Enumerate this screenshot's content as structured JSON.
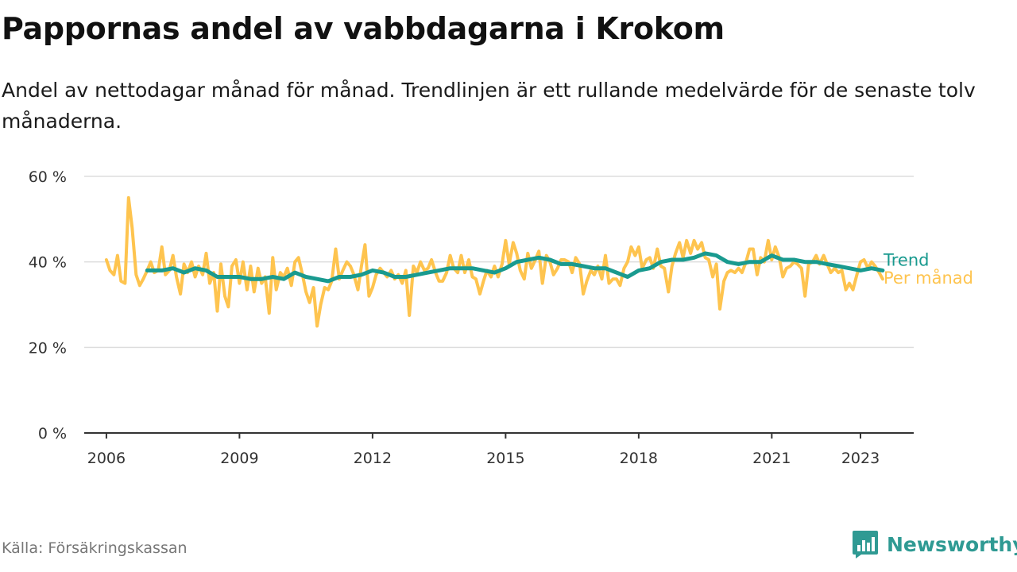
{
  "header": {
    "title": "Pappornas andel av vabbdagarna i Krokom",
    "subtitle": "Andel av nettodagar månad för månad. Trendlinjen är ett rullande medelvärde för de senaste tolv månaderna."
  },
  "footer": {
    "source": "Källa: Försäkringskassan",
    "brand": "Newsworthy",
    "brand_color": "#2f9a93"
  },
  "chart_data": {
    "type": "line",
    "title": "Pappornas andel av vabbdagarna i Krokom",
    "xlabel": "",
    "ylabel": "",
    "x_unit": "year (decimal)",
    "xlim": [
      2005.5,
      2024.2
    ],
    "ylim": [
      0,
      60
    ],
    "grid": true,
    "x_ticks": [
      {
        "value": 2006,
        "label": "2006"
      },
      {
        "value": 2009,
        "label": "2009"
      },
      {
        "value": 2012,
        "label": "2012"
      },
      {
        "value": 2015,
        "label": "2015"
      },
      {
        "value": 2018,
        "label": "2018"
      },
      {
        "value": 2021,
        "label": "2021"
      },
      {
        "value": 2023,
        "label": "2023"
      }
    ],
    "y_ticks": [
      {
        "value": 0,
        "label": "0 %"
      },
      {
        "value": 20,
        "label": "20 %"
      },
      {
        "value": 40,
        "label": "40 %"
      },
      {
        "value": 60,
        "label": "60 %"
      }
    ],
    "series": [
      {
        "name": "Per månad",
        "color": "#fec44f",
        "values": [
          [
            2006.0,
            40.5
          ],
          [
            2006.08,
            38
          ],
          [
            2006.17,
            37
          ],
          [
            2006.25,
            41.5
          ],
          [
            2006.33,
            35.5
          ],
          [
            2006.42,
            35
          ],
          [
            2006.5,
            55
          ],
          [
            2006.58,
            48
          ],
          [
            2006.67,
            37
          ],
          [
            2006.75,
            34.5
          ],
          [
            2006.83,
            36
          ],
          [
            2006.92,
            38
          ],
          [
            2007.0,
            40
          ],
          [
            2007.08,
            37.5
          ],
          [
            2007.17,
            38
          ],
          [
            2007.25,
            43.5
          ],
          [
            2007.33,
            37
          ],
          [
            2007.42,
            38
          ],
          [
            2007.5,
            41.5
          ],
          [
            2007.58,
            36.5
          ],
          [
            2007.67,
            32.5
          ],
          [
            2007.75,
            39.5
          ],
          [
            2007.83,
            37.5
          ],
          [
            2007.92,
            40
          ],
          [
            2008.0,
            36.5
          ],
          [
            2008.08,
            39
          ],
          [
            2008.17,
            37
          ],
          [
            2008.25,
            42
          ],
          [
            2008.33,
            35
          ],
          [
            2008.42,
            37.5
          ],
          [
            2008.5,
            28.5
          ],
          [
            2008.58,
            39.5
          ],
          [
            2008.67,
            32
          ],
          [
            2008.75,
            29.5
          ],
          [
            2008.83,
            39
          ],
          [
            2008.92,
            40.5
          ],
          [
            2009.0,
            35
          ],
          [
            2009.08,
            40
          ],
          [
            2009.17,
            33.5
          ],
          [
            2009.25,
            39
          ],
          [
            2009.33,
            33
          ],
          [
            2009.42,
            38.5
          ],
          [
            2009.5,
            35
          ],
          [
            2009.58,
            36.5
          ],
          [
            2009.67,
            28
          ],
          [
            2009.75,
            41
          ],
          [
            2009.83,
            33.5
          ],
          [
            2009.92,
            37.5
          ],
          [
            2010.0,
            36.5
          ],
          [
            2010.08,
            38.5
          ],
          [
            2010.17,
            34.5
          ],
          [
            2010.25,
            40
          ],
          [
            2010.33,
            41
          ],
          [
            2010.42,
            37
          ],
          [
            2010.5,
            33
          ],
          [
            2010.58,
            30.5
          ],
          [
            2010.67,
            34
          ],
          [
            2010.75,
            25
          ],
          [
            2010.83,
            30
          ],
          [
            2010.92,
            34
          ],
          [
            2011.0,
            33.5
          ],
          [
            2011.08,
            35.5
          ],
          [
            2011.17,
            43
          ],
          [
            2011.25,
            36
          ],
          [
            2011.33,
            38
          ],
          [
            2011.42,
            40
          ],
          [
            2011.5,
            39
          ],
          [
            2011.58,
            37
          ],
          [
            2011.67,
            33.5
          ],
          [
            2011.75,
            39
          ],
          [
            2011.83,
            44
          ],
          [
            2011.92,
            32
          ],
          [
            2012.0,
            34
          ],
          [
            2012.08,
            37
          ],
          [
            2012.17,
            38.5
          ],
          [
            2012.25,
            37.5
          ],
          [
            2012.33,
            36.5
          ],
          [
            2012.42,
            38
          ],
          [
            2012.5,
            36
          ],
          [
            2012.58,
            37
          ],
          [
            2012.67,
            35
          ],
          [
            2012.75,
            38
          ],
          [
            2012.83,
            27.5
          ],
          [
            2012.92,
            39
          ],
          [
            2013.0,
            37.5
          ],
          [
            2013.08,
            40
          ],
          [
            2013.17,
            38
          ],
          [
            2013.25,
            38.5
          ],
          [
            2013.33,
            40.5
          ],
          [
            2013.42,
            37.5
          ],
          [
            2013.5,
            35.5
          ],
          [
            2013.58,
            35.5
          ],
          [
            2013.67,
            37.5
          ],
          [
            2013.75,
            41.5
          ],
          [
            2013.83,
            38.5
          ],
          [
            2013.92,
            37.5
          ],
          [
            2014.0,
            41.5
          ],
          [
            2014.08,
            37.5
          ],
          [
            2014.17,
            40.5
          ],
          [
            2014.25,
            36.5
          ],
          [
            2014.33,
            36
          ],
          [
            2014.42,
            32.5
          ],
          [
            2014.5,
            35.5
          ],
          [
            2014.58,
            38
          ],
          [
            2014.67,
            36.5
          ],
          [
            2014.75,
            39
          ],
          [
            2014.83,
            36.5
          ],
          [
            2014.92,
            39.5
          ],
          [
            2015.0,
            45
          ],
          [
            2015.08,
            39.5
          ],
          [
            2015.17,
            44.5
          ],
          [
            2015.25,
            42
          ],
          [
            2015.33,
            38
          ],
          [
            2015.42,
            36
          ],
          [
            2015.5,
            42
          ],
          [
            2015.58,
            38.5
          ],
          [
            2015.67,
            40.5
          ],
          [
            2015.75,
            42.5
          ],
          [
            2015.83,
            35
          ],
          [
            2015.92,
            41.5
          ],
          [
            2016.0,
            40
          ],
          [
            2016.08,
            37
          ],
          [
            2016.17,
            38.5
          ],
          [
            2016.25,
            40.5
          ],
          [
            2016.33,
            40.5
          ],
          [
            2016.42,
            40
          ],
          [
            2016.5,
            37.5
          ],
          [
            2016.58,
            41
          ],
          [
            2016.67,
            39.5
          ],
          [
            2016.75,
            32.5
          ],
          [
            2016.83,
            35.5
          ],
          [
            2016.92,
            38
          ],
          [
            2017.0,
            37
          ],
          [
            2017.08,
            39
          ],
          [
            2017.17,
            36
          ],
          [
            2017.25,
            41.5
          ],
          [
            2017.33,
            35
          ],
          [
            2017.42,
            36
          ],
          [
            2017.5,
            36
          ],
          [
            2017.58,
            34.5
          ],
          [
            2017.67,
            38.5
          ],
          [
            2017.75,
            40
          ],
          [
            2017.83,
            43.5
          ],
          [
            2017.92,
            41.5
          ],
          [
            2018.0,
            43.5
          ],
          [
            2018.08,
            38.5
          ],
          [
            2018.17,
            40.5
          ],
          [
            2018.25,
            41
          ],
          [
            2018.33,
            38.5
          ],
          [
            2018.42,
            43
          ],
          [
            2018.5,
            39
          ],
          [
            2018.58,
            38.5
          ],
          [
            2018.67,
            33
          ],
          [
            2018.75,
            39
          ],
          [
            2018.83,
            42
          ],
          [
            2018.92,
            44.5
          ],
          [
            2019.0,
            41
          ],
          [
            2019.08,
            45
          ],
          [
            2019.17,
            42
          ],
          [
            2019.25,
            45
          ],
          [
            2019.33,
            43
          ],
          [
            2019.42,
            44.5
          ],
          [
            2019.5,
            41
          ],
          [
            2019.58,
            40.5
          ],
          [
            2019.67,
            36.5
          ],
          [
            2019.75,
            39.5
          ],
          [
            2019.83,
            29
          ],
          [
            2019.92,
            35.5
          ],
          [
            2020.0,
            37.5
          ],
          [
            2020.08,
            38
          ],
          [
            2020.17,
            37.5
          ],
          [
            2020.25,
            38.5
          ],
          [
            2020.33,
            37.5
          ],
          [
            2020.42,
            40
          ],
          [
            2020.5,
            43
          ],
          [
            2020.58,
            43
          ],
          [
            2020.67,
            37
          ],
          [
            2020.75,
            41
          ],
          [
            2020.83,
            40
          ],
          [
            2020.92,
            45
          ],
          [
            2021.0,
            40.5
          ],
          [
            2021.08,
            43.5
          ],
          [
            2021.17,
            41
          ],
          [
            2021.25,
            36.5
          ],
          [
            2021.33,
            38.5
          ],
          [
            2021.42,
            39
          ],
          [
            2021.5,
            40
          ],
          [
            2021.58,
            39.5
          ],
          [
            2021.67,
            38.5
          ],
          [
            2021.75,
            32
          ],
          [
            2021.83,
            39.5
          ],
          [
            2021.92,
            40
          ],
          [
            2022.0,
            41.5
          ],
          [
            2022.08,
            39.5
          ],
          [
            2022.17,
            41.5
          ],
          [
            2022.25,
            39.5
          ],
          [
            2022.33,
            37.5
          ],
          [
            2022.42,
            38.5
          ],
          [
            2022.5,
            37.5
          ],
          [
            2022.58,
            38
          ],
          [
            2022.67,
            33.5
          ],
          [
            2022.75,
            35
          ],
          [
            2022.83,
            33.5
          ],
          [
            2022.92,
            37
          ],
          [
            2023.0,
            40
          ],
          [
            2023.08,
            40.5
          ],
          [
            2023.17,
            38.5
          ],
          [
            2023.25,
            40
          ],
          [
            2023.33,
            39
          ],
          [
            2023.42,
            37.5
          ],
          [
            2023.5,
            36
          ]
        ]
      },
      {
        "name": "Trend",
        "color": "#199a8f",
        "values": [
          [
            2006.92,
            38
          ],
          [
            2007.0,
            38
          ],
          [
            2007.25,
            38
          ],
          [
            2007.5,
            38.5
          ],
          [
            2007.75,
            37.5
          ],
          [
            2008.0,
            38.5
          ],
          [
            2008.25,
            38
          ],
          [
            2008.5,
            36.5
          ],
          [
            2008.75,
            36.5
          ],
          [
            2009.0,
            36.5
          ],
          [
            2009.25,
            36
          ],
          [
            2009.5,
            36
          ],
          [
            2009.75,
            36.5
          ],
          [
            2010.0,
            36
          ],
          [
            2010.25,
            37.5
          ],
          [
            2010.5,
            36.5
          ],
          [
            2010.75,
            36
          ],
          [
            2011.0,
            35.5
          ],
          [
            2011.25,
            36.5
          ],
          [
            2011.5,
            36.5
          ],
          [
            2011.75,
            37
          ],
          [
            2012.0,
            38
          ],
          [
            2012.25,
            37.5
          ],
          [
            2012.5,
            36.5
          ],
          [
            2012.75,
            36.5
          ],
          [
            2013.0,
            37
          ],
          [
            2013.25,
            37.5
          ],
          [
            2013.5,
            38
          ],
          [
            2013.75,
            38.5
          ],
          [
            2014.0,
            38.5
          ],
          [
            2014.25,
            38.5
          ],
          [
            2014.5,
            38
          ],
          [
            2014.75,
            37.5
          ],
          [
            2015.0,
            38.5
          ],
          [
            2015.25,
            40
          ],
          [
            2015.5,
            40.5
          ],
          [
            2015.75,
            41
          ],
          [
            2016.0,
            40.5
          ],
          [
            2016.25,
            39.5
          ],
          [
            2016.5,
            39.5
          ],
          [
            2016.75,
            39
          ],
          [
            2017.0,
            38.5
          ],
          [
            2017.25,
            38.5
          ],
          [
            2017.5,
            37.5
          ],
          [
            2017.75,
            36.5
          ],
          [
            2018.0,
            38
          ],
          [
            2018.25,
            38.5
          ],
          [
            2018.5,
            40
          ],
          [
            2018.75,
            40.5
          ],
          [
            2019.0,
            40.5
          ],
          [
            2019.25,
            41
          ],
          [
            2019.5,
            42
          ],
          [
            2019.75,
            41.5
          ],
          [
            2020.0,
            40
          ],
          [
            2020.25,
            39.5
          ],
          [
            2020.5,
            40
          ],
          [
            2020.75,
            40
          ],
          [
            2021.0,
            41.5
          ],
          [
            2021.25,
            40.5
          ],
          [
            2021.5,
            40.5
          ],
          [
            2021.75,
            40
          ],
          [
            2022.0,
            40
          ],
          [
            2022.25,
            39.5
          ],
          [
            2022.5,
            39
          ],
          [
            2022.75,
            38.5
          ],
          [
            2023.0,
            38
          ],
          [
            2023.25,
            38.5
          ],
          [
            2023.5,
            38
          ]
        ]
      }
    ],
    "annotations": [
      {
        "text": "Trend",
        "series": "Trend"
      },
      {
        "text": "Per månad",
        "series": "Per månad"
      }
    ]
  }
}
